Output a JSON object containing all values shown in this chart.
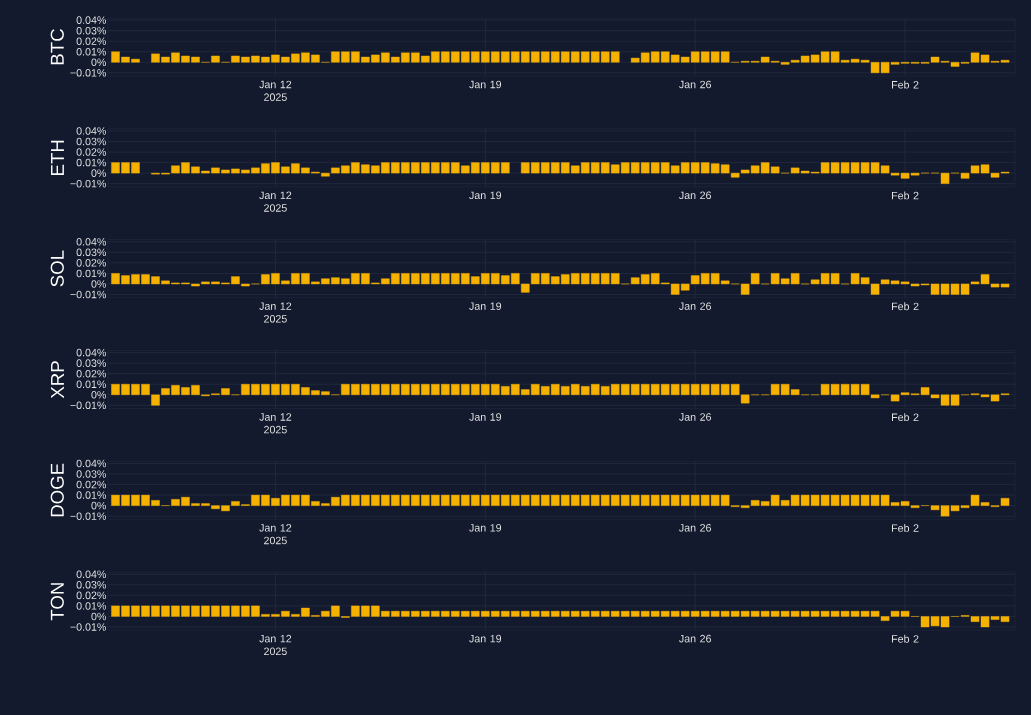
{
  "chart_data": [
    {
      "type": "bar",
      "ylabel": "BTC",
      "color": "#f5b100",
      "grid": true,
      "xlim": [
        "2025-01-06T10:00",
        "2025-02-05T16:00"
      ],
      "ylim": [
        -0.013,
        0.042
      ],
      "xticks": [
        {
          "value": "2025-01-12",
          "label": "Jan 12 2025"
        },
        {
          "value": "2025-01-19",
          "label": "Jan 19"
        },
        {
          "value": "2025-01-26",
          "label": "Jan 26"
        },
        {
          "value": "2025-02-02",
          "label": "Feb 2"
        }
      ],
      "yticks": [
        {
          "value": -0.01,
          "label": "−0.01%"
        },
        {
          "value": 0,
          "label": "0%"
        },
        {
          "value": 0.01,
          "label": "0.01%"
        },
        {
          "value": 0.02,
          "label": "0.02%"
        },
        {
          "value": 0.03,
          "label": "0.03%"
        },
        {
          "value": 0.04,
          "label": "0.04%"
        }
      ],
      "x": [
        "2025-01-06T16:00",
        "2025-01-07T00:00",
        "2025-01-07T08:00",
        "2025-01-07T16:00",
        "2025-01-08T00:00",
        "2025-01-08T08:00",
        "2025-01-08T16:00",
        "2025-01-09T00:00",
        "2025-01-09T08:00",
        "2025-01-09T16:00",
        "2025-01-10T00:00",
        "2025-01-10T08:00",
        "2025-01-10T16:00",
        "2025-01-11T00:00",
        "2025-01-11T08:00",
        "2025-01-11T16:00",
        "2025-01-12T00:00",
        "2025-01-12T08:00",
        "2025-01-12T16:00",
        "2025-01-13T00:00",
        "2025-01-13T08:00",
        "2025-01-13T16:00",
        "2025-01-14T00:00",
        "2025-01-14T08:00",
        "2025-01-14T16:00",
        "2025-01-15T00:00",
        "2025-01-15T08:00",
        "2025-01-15T16:00",
        "2025-01-16T00:00",
        "2025-01-16T08:00",
        "2025-01-16T16:00",
        "2025-01-17T00:00",
        "2025-01-17T08:00",
        "2025-01-17T16:00",
        "2025-01-18T00:00",
        "2025-01-18T08:00",
        "2025-01-18T16:00",
        "2025-01-19T00:00",
        "2025-01-19T08:00",
        "2025-01-19T16:00",
        "2025-01-20T00:00",
        "2025-01-20T08:00",
        "2025-01-20T16:00",
        "2025-01-21T00:00",
        "2025-01-21T08:00",
        "2025-01-21T16:00",
        "2025-01-22T00:00",
        "2025-01-22T08:00",
        "2025-01-22T16:00",
        "2025-01-23T00:00",
        "2025-01-23T08:00",
        "2025-01-23T16:00",
        "2025-01-24T00:00",
        "2025-01-24T08:00",
        "2025-01-24T16:00",
        "2025-01-25T00:00",
        "2025-01-25T08:00",
        "2025-01-25T16:00",
        "2025-01-26T00:00",
        "2025-01-26T08:00",
        "2025-01-26T16:00",
        "2025-01-27T00:00",
        "2025-01-27T08:00",
        "2025-01-27T16:00",
        "2025-01-28T00:00",
        "2025-01-28T08:00",
        "2025-01-28T16:00",
        "2025-01-29T00:00",
        "2025-01-29T08:00",
        "2025-01-29T16:00",
        "2025-01-30T00:00",
        "2025-01-30T08:00",
        "2025-01-30T16:00",
        "2025-01-31T00:00",
        "2025-01-31T08:00",
        "2025-01-31T16:00",
        "2025-02-01T00:00",
        "2025-02-01T08:00",
        "2025-02-01T16:00",
        "2025-02-02T00:00",
        "2025-02-02T08:00",
        "2025-02-02T16:00",
        "2025-02-03T00:00",
        "2025-02-03T08:00",
        "2025-02-03T16:00",
        "2025-02-04T00:00",
        "2025-02-04T08:00",
        "2025-02-04T16:00",
        "2025-02-05T00:00",
        "2025-02-05T08:00"
      ],
      "values": [
        0.01,
        0.005,
        0.003,
        null,
        0.008,
        0.005,
        0.009,
        0.006,
        0.005,
        0,
        0.006,
        0,
        0.006,
        0.005,
        0.006,
        0.005,
        0.007,
        0.005,
        0.008,
        0.009,
        0.007,
        0,
        0.01,
        0.01,
        0.01,
        0.005,
        0.007,
        0.009,
        0.005,
        0.009,
        0.009,
        0.006,
        0.01,
        0.01,
        0.01,
        0.01,
        0.01,
        0.01,
        0.01,
        0.01,
        0.01,
        0.01,
        0.01,
        0.01,
        0.01,
        0.01,
        0.01,
        0.01,
        0.01,
        0.01,
        0.01,
        null,
        0.004,
        0.009,
        0.01,
        0.01,
        0.007,
        0.005,
        0.01,
        0.01,
        0.01,
        0.01,
        0,
        0.001,
        0.001,
        0.005,
        0.001,
        -0.002,
        0.002,
        0.006,
        0.007,
        0.01,
        0.01,
        0.002,
        0.003,
        0.002,
        -0.01,
        -0.01,
        -0.002,
        -0.001,
        -0.001,
        -0.001,
        0.005,
        0.001,
        -0.004,
        -0.001,
        0.009,
        0.007,
        0.001,
        0.002
      ]
    },
    {
      "type": "bar",
      "ylabel": "ETH",
      "color": "#f5b100",
      "grid": true,
      "xlim": [
        "2025-01-06T10:00",
        "2025-02-05T16:00"
      ],
      "ylim": [
        -0.013,
        0.042
      ],
      "xticks": [
        {
          "value": "2025-01-12",
          "label": "Jan 12 2025"
        },
        {
          "value": "2025-01-19",
          "label": "Jan 19"
        },
        {
          "value": "2025-01-26",
          "label": "Jan 26"
        },
        {
          "value": "2025-02-02",
          "label": "Feb 2"
        }
      ],
      "yticks": [
        {
          "value": -0.01,
          "label": "−0.01%"
        },
        {
          "value": 0,
          "label": "0%"
        },
        {
          "value": 0.01,
          "label": "0.01%"
        },
        {
          "value": 0.02,
          "label": "0.02%"
        },
        {
          "value": 0.03,
          "label": "0.03%"
        },
        {
          "value": 0.04,
          "label": "0.04%"
        }
      ],
      "x": [
        "2025-01-06T16:00",
        "2025-01-07T00:00",
        "2025-01-07T08:00",
        "2025-01-07T16:00",
        "2025-01-08T00:00",
        "2025-01-08T08:00",
        "2025-01-08T16:00",
        "2025-01-09T00:00",
        "2025-01-09T08:00",
        "2025-01-09T16:00",
        "2025-01-10T00:00",
        "2025-01-10T08:00",
        "2025-01-10T16:00",
        "2025-01-11T00:00",
        "2025-01-11T08:00",
        "2025-01-11T16:00",
        "2025-01-12T00:00",
        "2025-01-12T08:00",
        "2025-01-12T16:00",
        "2025-01-13T00:00",
        "2025-01-13T08:00",
        "2025-01-13T16:00",
        "2025-01-14T00:00",
        "2025-01-14T08:00",
        "2025-01-14T16:00",
        "2025-01-15T00:00",
        "2025-01-15T08:00",
        "2025-01-15T16:00",
        "2025-01-16T00:00",
        "2025-01-16T08:00",
        "2025-01-16T16:00",
        "2025-01-17T00:00",
        "2025-01-17T08:00",
        "2025-01-17T16:00",
        "2025-01-18T00:00",
        "2025-01-18T08:00",
        "2025-01-18T16:00",
        "2025-01-19T00:00",
        "2025-01-19T08:00",
        "2025-01-19T16:00",
        "2025-01-20T00:00",
        "2025-01-20T08:00",
        "2025-01-20T16:00",
        "2025-01-21T00:00",
        "2025-01-21T08:00",
        "2025-01-21T16:00",
        "2025-01-22T00:00",
        "2025-01-22T08:00",
        "2025-01-22T16:00",
        "2025-01-23T00:00",
        "2025-01-23T08:00",
        "2025-01-23T16:00",
        "2025-01-24T00:00",
        "2025-01-24T08:00",
        "2025-01-24T16:00",
        "2025-01-25T00:00",
        "2025-01-25T08:00",
        "2025-01-25T16:00",
        "2025-01-26T00:00",
        "2025-01-26T08:00",
        "2025-01-26T16:00",
        "2025-01-27T00:00",
        "2025-01-27T08:00",
        "2025-01-27T16:00",
        "2025-01-28T00:00",
        "2025-01-28T08:00",
        "2025-01-28T16:00",
        "2025-01-29T00:00",
        "2025-01-29T08:00",
        "2025-01-29T16:00",
        "2025-01-30T00:00",
        "2025-01-30T08:00",
        "2025-01-30T16:00",
        "2025-01-31T00:00",
        "2025-01-31T08:00",
        "2025-01-31T16:00",
        "2025-02-01T00:00",
        "2025-02-01T08:00",
        "2025-02-01T16:00",
        "2025-02-02T00:00",
        "2025-02-02T08:00",
        "2025-02-02T16:00",
        "2025-02-03T00:00",
        "2025-02-03T08:00",
        "2025-02-03T16:00",
        "2025-02-04T00:00",
        "2025-02-04T08:00",
        "2025-02-04T16:00",
        "2025-02-05T00:00",
        "2025-02-05T08:00"
      ],
      "values": [
        0.01,
        0.01,
        0.01,
        null,
        -0.001,
        -0.001,
        0.007,
        0.01,
        0.006,
        0.002,
        0.005,
        0.003,
        0.004,
        0.003,
        0.005,
        0.009,
        0.01,
        0.006,
        0.009,
        0.005,
        0.001,
        -0.003,
        0.005,
        0.007,
        0.01,
        0.008,
        0.007,
        0.01,
        0.01,
        0.01,
        0.01,
        0.01,
        0.01,
        0.01,
        0.01,
        0.007,
        0.01,
        0.01,
        0.01,
        0.01,
        null,
        0.01,
        0.01,
        0.01,
        0.01,
        0.01,
        0.007,
        0.01,
        0.01,
        0.01,
        0.008,
        0.01,
        0.01,
        0.01,
        0.01,
        0.01,
        0.007,
        0.01,
        0.01,
        0.01,
        0.009,
        0.008,
        -0.004,
        0.003,
        0.007,
        0.01,
        0.006,
        0,
        0.005,
        0.002,
        0.001,
        0.01,
        0.01,
        0.01,
        0.01,
        0.01,
        0.01,
        0.007,
        -0.002,
        -0.005,
        -0.002,
        0,
        0,
        -0.01,
        0,
        -0.005,
        0.007,
        0.008,
        -0.004,
        0.001
      ]
    },
    {
      "type": "bar",
      "ylabel": "SOL",
      "color": "#f5b100",
      "grid": true,
      "xlim": [
        "2025-01-06T10:00",
        "2025-02-05T16:00"
      ],
      "ylim": [
        -0.013,
        0.042
      ],
      "xticks": [
        {
          "value": "2025-01-12",
          "label": "Jan 12 2025"
        },
        {
          "value": "2025-01-19",
          "label": "Jan 19"
        },
        {
          "value": "2025-01-26",
          "label": "Jan 26"
        },
        {
          "value": "2025-02-02",
          "label": "Feb 2"
        }
      ],
      "yticks": [
        {
          "value": -0.01,
          "label": "−0.01%"
        },
        {
          "value": 0,
          "label": "0%"
        },
        {
          "value": 0.01,
          "label": "0.01%"
        },
        {
          "value": 0.02,
          "label": "0.02%"
        },
        {
          "value": 0.03,
          "label": "0.03%"
        },
        {
          "value": 0.04,
          "label": "0.04%"
        }
      ],
      "x": [
        "2025-01-06T16:00",
        "2025-01-07T00:00",
        "2025-01-07T08:00",
        "2025-01-07T16:00",
        "2025-01-08T00:00",
        "2025-01-08T08:00",
        "2025-01-08T16:00",
        "2025-01-09T00:00",
        "2025-01-09T08:00",
        "2025-01-09T16:00",
        "2025-01-10T00:00",
        "2025-01-10T08:00",
        "2025-01-10T16:00",
        "2025-01-11T00:00",
        "2025-01-11T08:00",
        "2025-01-11T16:00",
        "2025-01-12T00:00",
        "2025-01-12T08:00",
        "2025-01-12T16:00",
        "2025-01-13T00:00",
        "2025-01-13T08:00",
        "2025-01-13T16:00",
        "2025-01-14T00:00",
        "2025-01-14T08:00",
        "2025-01-14T16:00",
        "2025-01-15T00:00",
        "2025-01-15T08:00",
        "2025-01-15T16:00",
        "2025-01-16T00:00",
        "2025-01-16T08:00",
        "2025-01-16T16:00",
        "2025-01-17T00:00",
        "2025-01-17T08:00",
        "2025-01-17T16:00",
        "2025-01-18T00:00",
        "2025-01-18T08:00",
        "2025-01-18T16:00",
        "2025-01-19T00:00",
        "2025-01-19T08:00",
        "2025-01-19T16:00",
        "2025-01-20T00:00",
        "2025-01-20T08:00",
        "2025-01-20T16:00",
        "2025-01-21T00:00",
        "2025-01-21T08:00",
        "2025-01-21T16:00",
        "2025-01-22T00:00",
        "2025-01-22T08:00",
        "2025-01-22T16:00",
        "2025-01-23T00:00",
        "2025-01-23T08:00",
        "2025-01-23T16:00",
        "2025-01-24T00:00",
        "2025-01-24T08:00",
        "2025-01-24T16:00",
        "2025-01-25T00:00",
        "2025-01-25T08:00",
        "2025-01-25T16:00",
        "2025-01-26T00:00",
        "2025-01-26T08:00",
        "2025-01-26T16:00",
        "2025-01-27T00:00",
        "2025-01-27T08:00",
        "2025-01-27T16:00",
        "2025-01-28T00:00",
        "2025-01-28T08:00",
        "2025-01-28T16:00",
        "2025-01-29T00:00",
        "2025-01-29T08:00",
        "2025-01-29T16:00",
        "2025-01-30T00:00",
        "2025-01-30T08:00",
        "2025-01-30T16:00",
        "2025-01-31T00:00",
        "2025-01-31T08:00",
        "2025-01-31T16:00",
        "2025-02-01T00:00",
        "2025-02-01T08:00",
        "2025-02-01T16:00",
        "2025-02-02T00:00",
        "2025-02-02T08:00",
        "2025-02-02T16:00",
        "2025-02-03T00:00",
        "2025-02-03T08:00",
        "2025-02-03T16:00",
        "2025-02-04T00:00",
        "2025-02-04T08:00",
        "2025-02-04T16:00",
        "2025-02-05T00:00",
        "2025-02-05T08:00"
      ],
      "values": [
        0.01,
        0.008,
        0.009,
        0.009,
        0.007,
        0.003,
        0.001,
        0.001,
        -0.002,
        0.002,
        0.002,
        0.001,
        0.007,
        -0.002,
        0,
        0.009,
        0.01,
        0.003,
        0.01,
        0.01,
        0.002,
        0.005,
        0.006,
        0.005,
        0.01,
        0.01,
        0.001,
        0.005,
        0.01,
        0.01,
        0.01,
        0.01,
        0.01,
        0.01,
        0.01,
        0.01,
        0.007,
        0.01,
        0.01,
        0.008,
        0.01,
        -0.008,
        0.01,
        0.01,
        0.007,
        0.009,
        0.01,
        0.01,
        0.01,
        0.01,
        0.01,
        0,
        0.006,
        0.009,
        0.01,
        0.001,
        -0.01,
        -0.006,
        0.008,
        0.01,
        0.01,
        0.003,
        0,
        -0.01,
        0.01,
        0,
        0.01,
        0.005,
        0.01,
        0,
        0.004,
        0.01,
        0.01,
        0,
        0.01,
        0.006,
        -0.01,
        0.004,
        0.003,
        0.002,
        -0.002,
        -0.001,
        -0.01,
        -0.01,
        -0.01,
        -0.01,
        0.002,
        0.009,
        -0.003,
        -0.003
      ]
    },
    {
      "type": "bar",
      "ylabel": "XRP",
      "color": "#f5b100",
      "grid": true,
      "xlim": [
        "2025-01-06T10:00",
        "2025-02-05T16:00"
      ],
      "ylim": [
        -0.013,
        0.042
      ],
      "xticks": [
        {
          "value": "2025-01-12",
          "label": "Jan 12 2025"
        },
        {
          "value": "2025-01-19",
          "label": "Jan 19"
        },
        {
          "value": "2025-01-26",
          "label": "Jan 26"
        },
        {
          "value": "2025-02-02",
          "label": "Feb 2"
        }
      ],
      "yticks": [
        {
          "value": -0.01,
          "label": "−0.01%"
        },
        {
          "value": 0,
          "label": "0%"
        },
        {
          "value": 0.01,
          "label": "0.01%"
        },
        {
          "value": 0.02,
          "label": "0.02%"
        },
        {
          "value": 0.03,
          "label": "0.03%"
        },
        {
          "value": 0.04,
          "label": "0.04%"
        }
      ],
      "x": [
        "2025-01-06T16:00",
        "2025-01-07T00:00",
        "2025-01-07T08:00",
        "2025-01-07T16:00",
        "2025-01-08T00:00",
        "2025-01-08T08:00",
        "2025-01-08T16:00",
        "2025-01-09T00:00",
        "2025-01-09T08:00",
        "2025-01-09T16:00",
        "2025-01-10T00:00",
        "2025-01-10T08:00",
        "2025-01-10T16:00",
        "2025-01-11T00:00",
        "2025-01-11T08:00",
        "2025-01-11T16:00",
        "2025-01-12T00:00",
        "2025-01-12T08:00",
        "2025-01-12T16:00",
        "2025-01-13T00:00",
        "2025-01-13T08:00",
        "2025-01-13T16:00",
        "2025-01-14T00:00",
        "2025-01-14T08:00",
        "2025-01-14T16:00",
        "2025-01-15T00:00",
        "2025-01-15T08:00",
        "2025-01-15T16:00",
        "2025-01-16T00:00",
        "2025-01-16T08:00",
        "2025-01-16T16:00",
        "2025-01-17T00:00",
        "2025-01-17T08:00",
        "2025-01-17T16:00",
        "2025-01-18T00:00",
        "2025-01-18T08:00",
        "2025-01-18T16:00",
        "2025-01-19T00:00",
        "2025-01-19T08:00",
        "2025-01-19T16:00",
        "2025-01-20T00:00",
        "2025-01-20T08:00",
        "2025-01-20T16:00",
        "2025-01-21T00:00",
        "2025-01-21T08:00",
        "2025-01-21T16:00",
        "2025-01-22T00:00",
        "2025-01-22T08:00",
        "2025-01-22T16:00",
        "2025-01-23T00:00",
        "2025-01-23T08:00",
        "2025-01-23T16:00",
        "2025-01-24T00:00",
        "2025-01-24T08:00",
        "2025-01-24T16:00",
        "2025-01-25T00:00",
        "2025-01-25T08:00",
        "2025-01-25T16:00",
        "2025-01-26T00:00",
        "2025-01-26T08:00",
        "2025-01-26T16:00",
        "2025-01-27T00:00",
        "2025-01-27T08:00",
        "2025-01-27T16:00",
        "2025-01-28T00:00",
        "2025-01-28T08:00",
        "2025-01-28T16:00",
        "2025-01-29T00:00",
        "2025-01-29T08:00",
        "2025-01-29T16:00",
        "2025-01-30T00:00",
        "2025-01-30T08:00",
        "2025-01-30T16:00",
        "2025-01-31T00:00",
        "2025-01-31T08:00",
        "2025-01-31T16:00",
        "2025-02-01T00:00",
        "2025-02-01T08:00",
        "2025-02-01T16:00",
        "2025-02-02T00:00",
        "2025-02-02T08:00",
        "2025-02-02T16:00",
        "2025-02-03T00:00",
        "2025-02-03T08:00",
        "2025-02-03T16:00",
        "2025-02-04T00:00",
        "2025-02-04T08:00",
        "2025-02-04T16:00",
        "2025-02-05T00:00",
        "2025-02-05T08:00"
      ],
      "values": [
        0.01,
        0.01,
        0.01,
        0.01,
        -0.01,
        0.006,
        0.009,
        0.007,
        0.009,
        -0.001,
        0.001,
        0.006,
        0,
        0.01,
        0.01,
        0.01,
        0.01,
        0.01,
        0.01,
        0.007,
        0.004,
        0.003,
        0,
        0.01,
        0.01,
        0.01,
        0.01,
        0.01,
        0.01,
        0.01,
        0.01,
        0.01,
        0.01,
        0.01,
        0.01,
        0.01,
        0.01,
        0.01,
        0.01,
        0.008,
        0.01,
        0.005,
        0.01,
        0.008,
        0.01,
        0.008,
        0.01,
        0.008,
        0.01,
        0.008,
        0.01,
        0.01,
        0.01,
        0.01,
        0.01,
        0.01,
        0.01,
        0.01,
        0.01,
        0.01,
        0.01,
        0.01,
        0.01,
        -0.008,
        0,
        0,
        0.01,
        0.01,
        0.005,
        0,
        0,
        0.01,
        0.01,
        0.01,
        0.01,
        0.01,
        -0.003,
        0,
        -0.006,
        0.002,
        0.001,
        0.007,
        -0.003,
        -0.01,
        -0.01,
        0,
        0.001,
        -0.002,
        -0.006,
        0.001
      ]
    },
    {
      "type": "bar",
      "ylabel": "DOGE",
      "color": "#f5b100",
      "grid": true,
      "xlim": [
        "2025-01-06T10:00",
        "2025-02-05T16:00"
      ],
      "ylim": [
        -0.013,
        0.042
      ],
      "xticks": [
        {
          "value": "2025-01-12",
          "label": "Jan 12 2025"
        },
        {
          "value": "2025-01-19",
          "label": "Jan 19"
        },
        {
          "value": "2025-01-26",
          "label": "Jan 26"
        },
        {
          "value": "2025-02-02",
          "label": "Feb 2"
        }
      ],
      "yticks": [
        {
          "value": -0.01,
          "label": "−0.01%"
        },
        {
          "value": 0,
          "label": "0%"
        },
        {
          "value": 0.01,
          "label": "0.01%"
        },
        {
          "value": 0.02,
          "label": "0.02%"
        },
        {
          "value": 0.03,
          "label": "0.03%"
        },
        {
          "value": 0.04,
          "label": "0.04%"
        }
      ],
      "x": [
        "2025-01-06T16:00",
        "2025-01-07T00:00",
        "2025-01-07T08:00",
        "2025-01-07T16:00",
        "2025-01-08T00:00",
        "2025-01-08T08:00",
        "2025-01-08T16:00",
        "2025-01-09T00:00",
        "2025-01-09T08:00",
        "2025-01-09T16:00",
        "2025-01-10T00:00",
        "2025-01-10T08:00",
        "2025-01-10T16:00",
        "2025-01-11T00:00",
        "2025-01-11T08:00",
        "2025-01-11T16:00",
        "2025-01-12T00:00",
        "2025-01-12T08:00",
        "2025-01-12T16:00",
        "2025-01-13T00:00",
        "2025-01-13T08:00",
        "2025-01-13T16:00",
        "2025-01-14T00:00",
        "2025-01-14T08:00",
        "2025-01-14T16:00",
        "2025-01-15T00:00",
        "2025-01-15T08:00",
        "2025-01-15T16:00",
        "2025-01-16T00:00",
        "2025-01-16T08:00",
        "2025-01-16T16:00",
        "2025-01-17T00:00",
        "2025-01-17T08:00",
        "2025-01-17T16:00",
        "2025-01-18T00:00",
        "2025-01-18T08:00",
        "2025-01-18T16:00",
        "2025-01-19T00:00",
        "2025-01-19T08:00",
        "2025-01-19T16:00",
        "2025-01-20T00:00",
        "2025-01-20T08:00",
        "2025-01-20T16:00",
        "2025-01-21T00:00",
        "2025-01-21T08:00",
        "2025-01-21T16:00",
        "2025-01-22T00:00",
        "2025-01-22T08:00",
        "2025-01-22T16:00",
        "2025-01-23T00:00",
        "2025-01-23T08:00",
        "2025-01-23T16:00",
        "2025-01-24T00:00",
        "2025-01-24T08:00",
        "2025-01-24T16:00",
        "2025-01-25T00:00",
        "2025-01-25T08:00",
        "2025-01-25T16:00",
        "2025-01-26T00:00",
        "2025-01-26T08:00",
        "2025-01-26T16:00",
        "2025-01-27T00:00",
        "2025-01-27T08:00",
        "2025-01-27T16:00",
        "2025-01-28T00:00",
        "2025-01-28T08:00",
        "2025-01-28T16:00",
        "2025-01-29T00:00",
        "2025-01-29T08:00",
        "2025-01-29T16:00",
        "2025-01-30T00:00",
        "2025-01-30T08:00",
        "2025-01-30T16:00",
        "2025-01-31T00:00",
        "2025-01-31T08:00",
        "2025-01-31T16:00",
        "2025-02-01T00:00",
        "2025-02-01T08:00",
        "2025-02-01T16:00",
        "2025-02-02T00:00",
        "2025-02-02T08:00",
        "2025-02-02T16:00",
        "2025-02-03T00:00",
        "2025-02-03T08:00",
        "2025-02-03T16:00",
        "2025-02-04T00:00",
        "2025-02-04T08:00",
        "2025-02-04T16:00",
        "2025-02-05T00:00",
        "2025-02-05T08:00"
      ],
      "values": [
        0.01,
        0.01,
        0.01,
        0.01,
        0.005,
        0,
        0.006,
        0.008,
        0.002,
        0.002,
        -0.003,
        -0.005,
        0.004,
        0.001,
        0.01,
        0.01,
        0.007,
        0.01,
        0.01,
        0.01,
        0.004,
        0.002,
        0.008,
        0.01,
        0.01,
        0.01,
        0.01,
        0.01,
        0.01,
        0.01,
        0.01,
        0.01,
        0.01,
        0.01,
        0.01,
        0.01,
        0.01,
        0.01,
        0.01,
        0.01,
        0.01,
        0.01,
        0.01,
        0.01,
        0.01,
        0.01,
        0.01,
        0.01,
        0.01,
        0.01,
        0.01,
        0.01,
        0.01,
        0.01,
        0.01,
        0.01,
        0.01,
        0.01,
        0.01,
        0.01,
        0.01,
        0.01,
        -0.001,
        -0.002,
        0.005,
        0.004,
        0.01,
        0.005,
        0.01,
        0.01,
        0.01,
        0.01,
        0.01,
        0.01,
        0.01,
        0.01,
        0.01,
        0.01,
        0.003,
        0.004,
        -0.002,
        0,
        -0.004,
        -0.01,
        -0.005,
        -0.002,
        0.01,
        0.003,
        -0.001,
        0.007
      ]
    },
    {
      "type": "bar",
      "ylabel": "TON",
      "color": "#f5b100",
      "grid": true,
      "xlim": [
        "2025-01-06T10:00",
        "2025-02-05T16:00"
      ],
      "ylim": [
        -0.013,
        0.042
      ],
      "xticks": [
        {
          "value": "2025-01-12",
          "label": "Jan 12 2025"
        },
        {
          "value": "2025-01-19",
          "label": "Jan 19"
        },
        {
          "value": "2025-01-26",
          "label": "Jan 26"
        },
        {
          "value": "2025-02-02",
          "label": "Feb 2"
        }
      ],
      "yticks": [
        {
          "value": -0.01,
          "label": "−0.01%"
        },
        {
          "value": 0,
          "label": "0%"
        },
        {
          "value": 0.01,
          "label": "0.01%"
        },
        {
          "value": 0.02,
          "label": "0.02%"
        },
        {
          "value": 0.03,
          "label": "0.03%"
        },
        {
          "value": 0.04,
          "label": "0.04%"
        }
      ],
      "x": [
        "2025-01-06T16:00",
        "2025-01-07T00:00",
        "2025-01-07T08:00",
        "2025-01-07T16:00",
        "2025-01-08T00:00",
        "2025-01-08T08:00",
        "2025-01-08T16:00",
        "2025-01-09T00:00",
        "2025-01-09T08:00",
        "2025-01-09T16:00",
        "2025-01-10T00:00",
        "2025-01-10T08:00",
        "2025-01-10T16:00",
        "2025-01-11T00:00",
        "2025-01-11T08:00",
        "2025-01-11T16:00",
        "2025-01-12T00:00",
        "2025-01-12T08:00",
        "2025-01-12T16:00",
        "2025-01-13T00:00",
        "2025-01-13T08:00",
        "2025-01-13T16:00",
        "2025-01-14T00:00",
        "2025-01-14T08:00",
        "2025-01-14T16:00",
        "2025-01-15T00:00",
        "2025-01-15T08:00",
        "2025-01-15T16:00",
        "2025-01-16T00:00",
        "2025-01-16T08:00",
        "2025-01-16T16:00",
        "2025-01-17T00:00",
        "2025-01-17T08:00",
        "2025-01-17T16:00",
        "2025-01-18T00:00",
        "2025-01-18T08:00",
        "2025-01-18T16:00",
        "2025-01-19T00:00",
        "2025-01-19T08:00",
        "2025-01-19T16:00",
        "2025-01-20T00:00",
        "2025-01-20T08:00",
        "2025-01-20T16:00",
        "2025-01-21T00:00",
        "2025-01-21T08:00",
        "2025-01-21T16:00",
        "2025-01-22T00:00",
        "2025-01-22T08:00",
        "2025-01-22T16:00",
        "2025-01-23T00:00",
        "2025-01-23T08:00",
        "2025-01-23T16:00",
        "2025-01-24T00:00",
        "2025-01-24T08:00",
        "2025-01-24T16:00",
        "2025-01-25T00:00",
        "2025-01-25T08:00",
        "2025-01-25T16:00",
        "2025-01-26T00:00",
        "2025-01-26T08:00",
        "2025-01-26T16:00",
        "2025-01-27T00:00",
        "2025-01-27T08:00",
        "2025-01-27T16:00",
        "2025-01-28T00:00",
        "2025-01-28T08:00",
        "2025-01-28T16:00",
        "2025-01-29T00:00",
        "2025-01-29T08:00",
        "2025-01-29T16:00",
        "2025-01-30T00:00",
        "2025-01-30T08:00",
        "2025-01-30T16:00",
        "2025-01-31T00:00",
        "2025-01-31T08:00",
        "2025-01-31T16:00",
        "2025-02-01T00:00",
        "2025-02-01T08:00",
        "2025-02-01T16:00",
        "2025-02-02T00:00",
        "2025-02-02T08:00",
        "2025-02-02T16:00",
        "2025-02-03T00:00",
        "2025-02-03T08:00",
        "2025-02-03T16:00",
        "2025-02-04T00:00",
        "2025-02-04T08:00",
        "2025-02-04T16:00",
        "2025-02-05T00:00",
        "2025-02-05T08:00"
      ],
      "values": [
        0.01,
        0.01,
        0.01,
        0.01,
        0.01,
        0.01,
        0.01,
        0.01,
        0.01,
        0.01,
        0.01,
        0.01,
        0.01,
        0.01,
        0.01,
        0.002,
        0.002,
        0.005,
        0.002,
        0.008,
        0.001,
        0.005,
        0.01,
        -0.001,
        0.01,
        0.01,
        0.01,
        0.005,
        0.005,
        0.005,
        0.005,
        0.005,
        0.005,
        0.005,
        0.005,
        0.005,
        0.005,
        0.005,
        0.005,
        0.005,
        0.005,
        0.005,
        0.005,
        0.005,
        0.005,
        0.005,
        0.005,
        0.005,
        0.005,
        0.005,
        0.005,
        0.005,
        0.005,
        0.005,
        0.005,
        0.005,
        0.005,
        0.005,
        0.005,
        0.005,
        0.005,
        0.005,
        0.005,
        0.005,
        0.005,
        0.005,
        0.005,
        0.005,
        0.005,
        0.005,
        0.005,
        0.005,
        0.005,
        0.005,
        0.005,
        0.005,
        0.005,
        -0.004,
        0.005,
        0.005,
        0,
        -0.01,
        -0.009,
        -0.01,
        0,
        0.001,
        -0.005,
        -0.01,
        -0.003,
        -0.005
      ]
    }
  ]
}
